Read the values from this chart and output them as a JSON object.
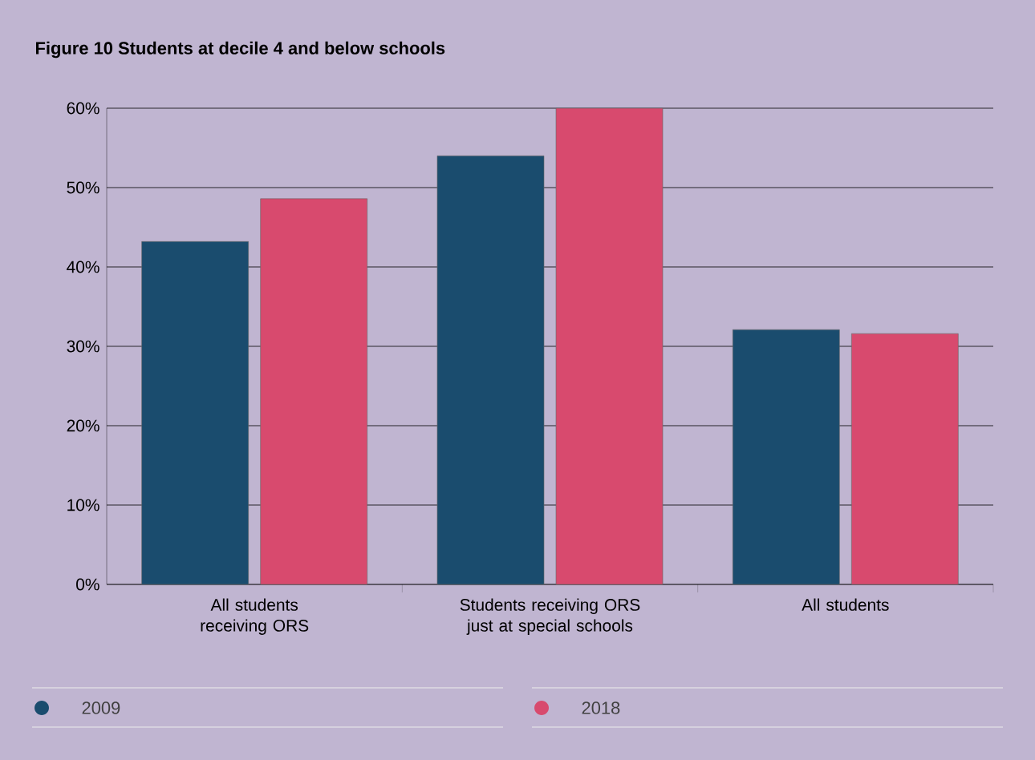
{
  "chart_data": {
    "type": "bar",
    "title": "Figure 10 Students at decile 4 and below schools",
    "categories": [
      "All students receiving ORS",
      "Students receiving ORS just at special schools",
      "All students"
    ],
    "series": [
      {
        "name": "2009",
        "color": "#1a4c6e",
        "values": [
          43.2,
          54.0,
          32.1
        ]
      },
      {
        "name": "2018",
        "color": "#d84a6e",
        "values": [
          48.6,
          60.0,
          31.6
        ]
      }
    ],
    "ylim": [
      0,
      60
    ],
    "yticks": [
      {
        "value": 0,
        "label": "0%"
      },
      {
        "value": 10,
        "label": "10%"
      },
      {
        "value": 20,
        "label": "20%"
      },
      {
        "value": 30,
        "label": "30%"
      },
      {
        "value": 40,
        "label": "40%"
      },
      {
        "value": 50,
        "label": "50%"
      },
      {
        "value": 60,
        "label": "60%"
      }
    ],
    "grid": "y",
    "legend": "bottom"
  }
}
